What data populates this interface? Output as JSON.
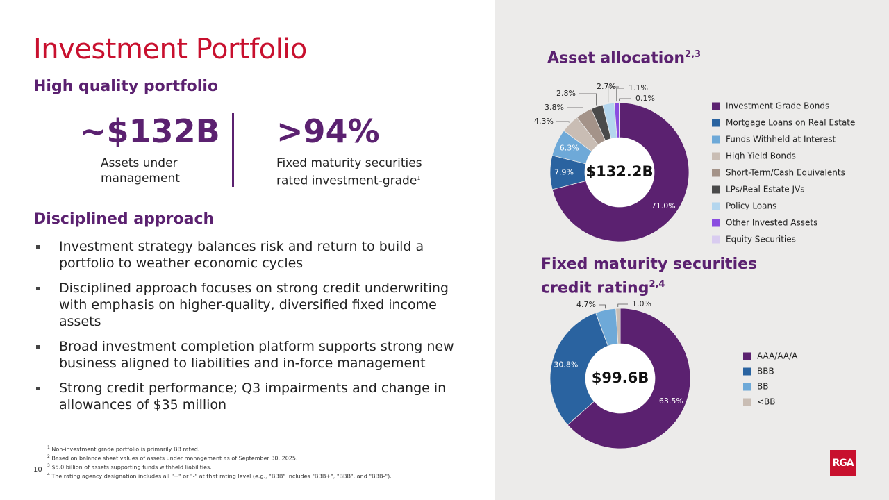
{
  "header": {
    "title": "Investment Portfolio",
    "subtitle": "High quality portfolio"
  },
  "stats": [
    {
      "value": "~$132B",
      "label": "Assets under management"
    },
    {
      "value": ">94%",
      "label": "Fixed maturity securities rated investment-grade",
      "sup": "1"
    }
  ],
  "approach": {
    "title": "Disciplined approach",
    "bullets": [
      "Investment strategy balances risk and return to build a portfolio to weather economic cycles",
      "Disciplined approach focuses on strong credit underwriting with emphasis on higher-quality, diversified fixed income assets",
      "Broad investment completion platform supports strong new business aligned to liabilities and in-force management",
      "Strong credit performance; Q3 impairments and change in allowances of $35 million"
    ]
  },
  "footnotes": [
    {
      "num": "1",
      "text": "Non-investment grade portfolio is primarily BB rated."
    },
    {
      "num": "2",
      "text": "Based on balance sheet values of assets under management as of September 30, 2025."
    },
    {
      "num": "3",
      "text": "$5.0 billion of assets supporting funds withheld liabilities."
    },
    {
      "num": "4",
      "text": "The rating agency designation includes all \"+\" or \"-\" at that rating level (e.g., \"BBB\" includes \"BBB+\", \"BBB\", and \"BBB-\")."
    }
  ],
  "page_number": "10",
  "logo": "RGA",
  "chart_data": [
    {
      "type": "donut",
      "title": "Asset allocation",
      "title_sup": "2,3",
      "center_label": "$132.2B",
      "categories": [
        "Investment Grade Bonds",
        "Mortgage Loans on Real Estate",
        "Funds Withheld at Interest",
        "High Yield Bonds",
        "Short-Term/Cash Equivalents",
        "LPs/Real Estate JVs",
        "Policy Loans",
        "Other Invested Assets",
        "Equity Securities"
      ],
      "values": [
        71.0,
        7.9,
        6.3,
        4.3,
        3.8,
        2.8,
        2.7,
        1.1,
        0.1
      ],
      "value_labels": [
        "71.0%",
        "7.9%",
        "6.3%",
        "4.3%",
        "3.8%",
        "2.8%",
        "2.7%",
        "1.1%",
        "0.1%"
      ],
      "colors": [
        "#5b2170",
        "#2a63a0",
        "#6ea9d8",
        "#c9bdb4",
        "#a49389",
        "#4a4a4a",
        "#b4d6ee",
        "#8a4de0",
        "#d9ccf0"
      ]
    },
    {
      "type": "donut",
      "title": "Fixed maturity securities credit rating",
      "title_sup": "2,4",
      "center_label": "$99.6B",
      "categories": [
        "AAA/AA/A",
        "BBB",
        "BB",
        "<BB"
      ],
      "values": [
        63.5,
        30.8,
        4.7,
        1.0
      ],
      "value_labels": [
        "63.5%",
        "30.8%",
        "4.7%",
        "1.0%"
      ],
      "colors": [
        "#5b2170",
        "#2a63a0",
        "#6ea9d8",
        "#c9bdb4"
      ]
    }
  ]
}
